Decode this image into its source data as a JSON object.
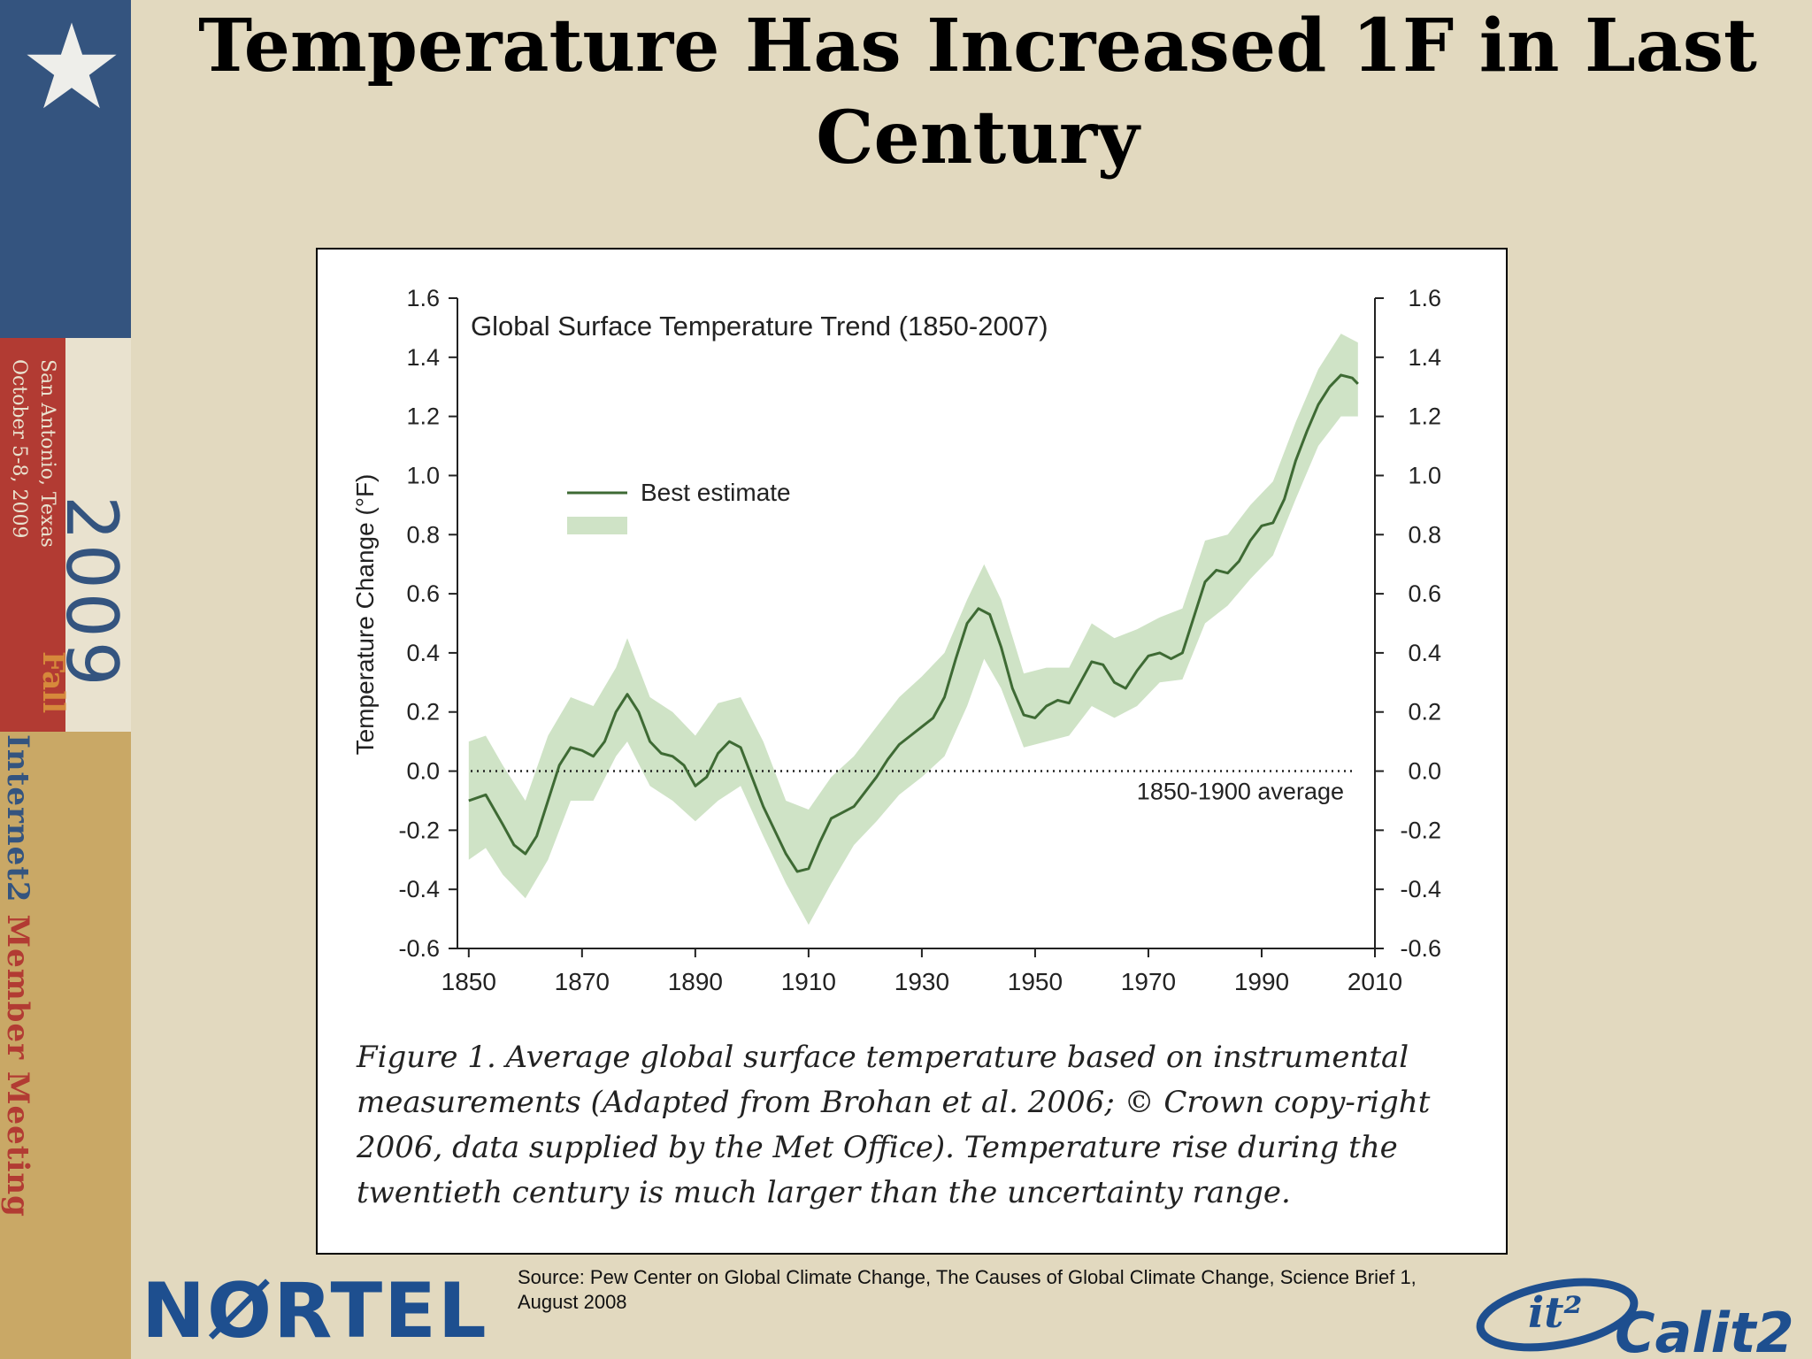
{
  "slide": {
    "title": "Temperature Has Increased 1F in Last Century",
    "source": "Source:  Pew Center on Global Climate Change, The Causes of Global Climate Change, Science Brief 1, August 2008",
    "caption": "Figure 1. Average global surface temperature based on instrumental measurements (Adapted from Brohan et al. 2006; © Crown copy-right 2006, data supplied by the Met Office). Temperature rise during the twentieth century is much larger than the uncertainty range."
  },
  "banner": {
    "year": "2009",
    "season": "Fall",
    "city": "San Antonio, Texas",
    "date": "October 5-8, 2009",
    "meeting_part1": "Internet2 ",
    "meeting_part2": "Member Meeting"
  },
  "logos": {
    "nortel_part1": "N",
    "nortel_globe": "Ø",
    "nortel_part2": "RTEL",
    "calit2": "Calit2",
    "it2": "it²"
  },
  "colors": {
    "band": "#cfe3c6",
    "line": "#3e6a34",
    "nortel_blue": "#1e4f8f",
    "calit2_blue": "#1e4f8f",
    "calit2_gold": "#e0a526"
  },
  "chart_data": {
    "type": "area",
    "title": "Global Surface Temperature Trend (1850-2007)",
    "xlabel": "",
    "ylabel": "Temperature Change (°F)",
    "xlim": [
      1848,
      2010
    ],
    "ylim": [
      -0.6,
      1.6
    ],
    "x_ticks": [
      1850,
      1870,
      1890,
      1910,
      1930,
      1950,
      1970,
      1990,
      2010
    ],
    "y_ticks": [
      -0.6,
      -0.4,
      -0.2,
      0.0,
      0.2,
      0.4,
      0.6,
      0.8,
      1.0,
      1.2,
      1.4,
      1.6
    ],
    "y_tick_labels": [
      "-0.6",
      "-0.4",
      "-0.2",
      "0.0",
      "0.2",
      "0.4",
      "0.6",
      "0.8",
      "1.0",
      "1.2",
      "1.4",
      "1.6"
    ],
    "legend": [
      "Best estimate"
    ],
    "legend_position": "upper-left",
    "reference_line": {
      "y": 0.0,
      "label": "1850-1900 average",
      "style": "dotted"
    },
    "grid": false,
    "series": [
      {
        "name": "Best estimate",
        "x": [
          1850,
          1853,
          1856,
          1858,
          1860,
          1862,
          1864,
          1866,
          1868,
          1870,
          1872,
          1874,
          1876,
          1878,
          1880,
          1882,
          1884,
          1886,
          1888,
          1890,
          1892,
          1894,
          1896,
          1898,
          1900,
          1902,
          1904,
          1906,
          1908,
          1910,
          1912,
          1914,
          1916,
          1918,
          1920,
          1922,
          1924,
          1926,
          1928,
          1930,
          1932,
          1934,
          1936,
          1938,
          1940,
          1942,
          1944,
          1946,
          1948,
          1950,
          1952,
          1954,
          1956,
          1958,
          1960,
          1962,
          1964,
          1966,
          1968,
          1970,
          1972,
          1974,
          1976,
          1978,
          1980,
          1982,
          1984,
          1986,
          1988,
          1990,
          1992,
          1994,
          1996,
          1998,
          2000,
          2002,
          2004,
          2006,
          2007
        ],
        "y": [
          -0.1,
          -0.08,
          -0.18,
          -0.25,
          -0.28,
          -0.22,
          -0.1,
          0.02,
          0.08,
          0.07,
          0.05,
          0.1,
          0.2,
          0.26,
          0.2,
          0.1,
          0.06,
          0.05,
          0.02,
          -0.05,
          -0.02,
          0.06,
          0.1,
          0.08,
          -0.02,
          -0.12,
          -0.2,
          -0.28,
          -0.34,
          -0.33,
          -0.24,
          -0.16,
          -0.14,
          -0.12,
          -0.07,
          -0.02,
          0.04,
          0.09,
          0.12,
          0.15,
          0.18,
          0.25,
          0.38,
          0.5,
          0.55,
          0.53,
          0.42,
          0.28,
          0.19,
          0.18,
          0.22,
          0.24,
          0.23,
          0.3,
          0.37,
          0.36,
          0.3,
          0.28,
          0.34,
          0.39,
          0.4,
          0.38,
          0.4,
          0.52,
          0.64,
          0.68,
          0.67,
          0.71,
          0.78,
          0.83,
          0.84,
          0.92,
          1.05,
          1.15,
          1.24,
          1.3,
          1.34,
          1.33,
          1.31
        ]
      },
      {
        "name": "",
        "type": "band",
        "x": [
          1850,
          1853,
          1856,
          1860,
          1864,
          1868,
          1872,
          1876,
          1878,
          1882,
          1886,
          1890,
          1894,
          1898,
          1902,
          1906,
          1910,
          1914,
          1918,
          1922,
          1926,
          1930,
          1934,
          1938,
          1941,
          1944,
          1948,
          1952,
          1956,
          1960,
          1964,
          1968,
          1972,
          1976,
          1980,
          1984,
          1988,
          1992,
          1996,
          2000,
          2004,
          2007
        ],
        "lower": [
          -0.3,
          -0.26,
          -0.35,
          -0.43,
          -0.3,
          -0.1,
          -0.1,
          0.05,
          0.1,
          -0.05,
          -0.1,
          -0.17,
          -0.1,
          -0.05,
          -0.22,
          -0.38,
          -0.52,
          -0.38,
          -0.25,
          -0.17,
          -0.08,
          -0.02,
          0.05,
          0.22,
          0.38,
          0.28,
          0.08,
          0.1,
          0.12,
          0.22,
          0.18,
          0.22,
          0.3,
          0.31,
          0.5,
          0.56,
          0.65,
          0.73,
          0.92,
          1.1,
          1.2,
          1.2
        ],
        "upper": [
          0.1,
          0.12,
          0.02,
          -0.1,
          0.12,
          0.25,
          0.22,
          0.35,
          0.45,
          0.25,
          0.2,
          0.12,
          0.23,
          0.25,
          0.1,
          -0.1,
          -0.13,
          -0.02,
          0.05,
          0.15,
          0.25,
          0.32,
          0.4,
          0.58,
          0.7,
          0.58,
          0.33,
          0.35,
          0.35,
          0.5,
          0.45,
          0.48,
          0.52,
          0.55,
          0.78,
          0.8,
          0.9,
          0.98,
          1.18,
          1.36,
          1.48,
          1.45
        ]
      }
    ]
  }
}
